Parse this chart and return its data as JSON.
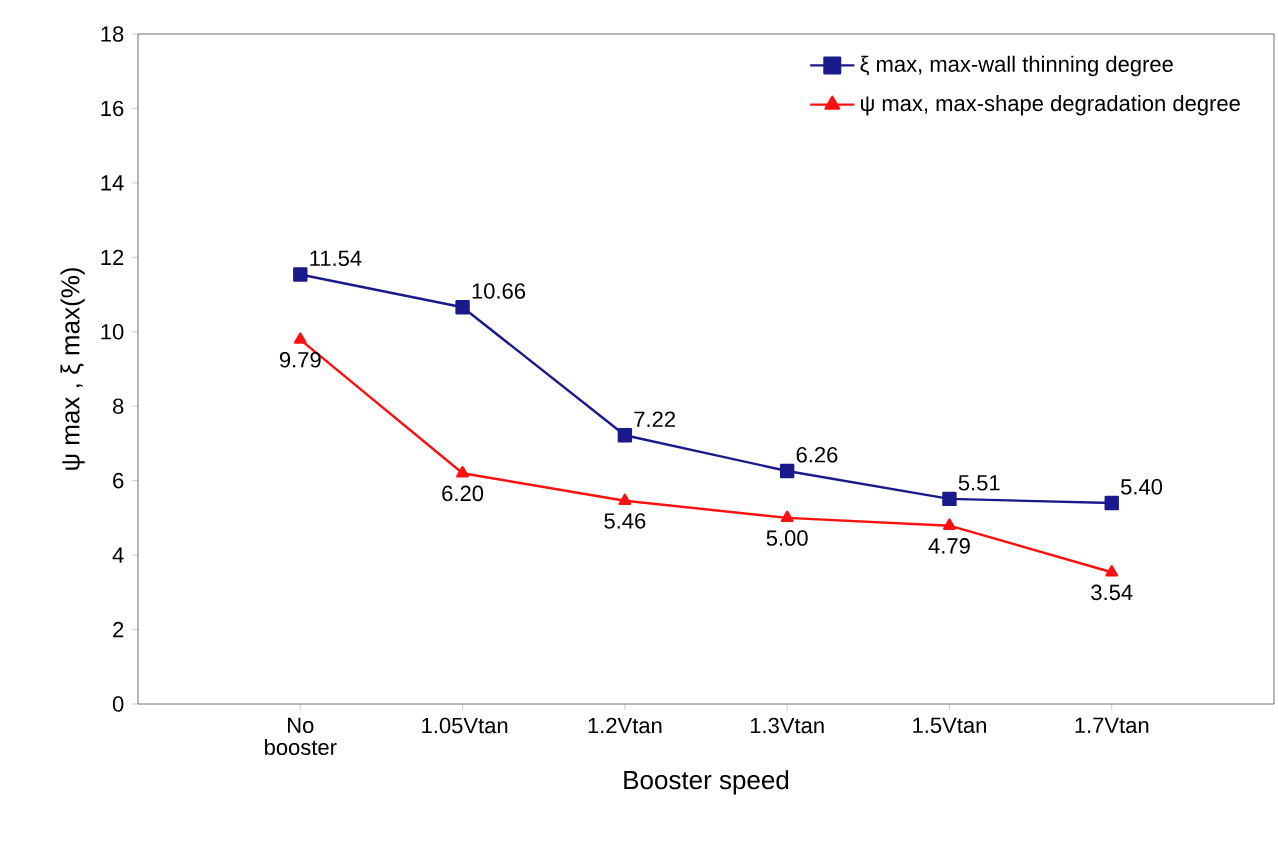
{
  "chart_data": {
    "type": "line",
    "xlabel": "Booster speed",
    "ylabel": "ψ max , ξ max(%)",
    "categories": [
      "No booster",
      "1.05Vtan",
      "1.2Vtan",
      "1.3Vtan",
      "1.5Vtan",
      "1.7Vtan"
    ],
    "series": [
      {
        "name": "ξ max, max-wall thinning degree",
        "color": "#1a1a8c",
        "marker": "square",
        "values": [
          11.54,
          10.66,
          7.22,
          6.26,
          5.51,
          5.4
        ],
        "value_labels": [
          "11.54",
          "10.66",
          "7.22",
          "6.26",
          "5.51",
          "5.40"
        ]
      },
      {
        "name": "ψ max, max-shape degradation degree",
        "color": "#ff1010",
        "marker": "triangle",
        "values": [
          9.79,
          6.2,
          5.46,
          5.0,
          4.79,
          3.54
        ],
        "value_labels": [
          "9.79",
          "6.20",
          "5.46",
          "5.00",
          "4.79",
          "3.54"
        ]
      }
    ],
    "ylim": [
      0,
      18
    ],
    "yticks": [
      0,
      2,
      4,
      6,
      8,
      10,
      12,
      14,
      16,
      18
    ],
    "legend": "top right",
    "grid": false,
    "line_style": "solid"
  }
}
